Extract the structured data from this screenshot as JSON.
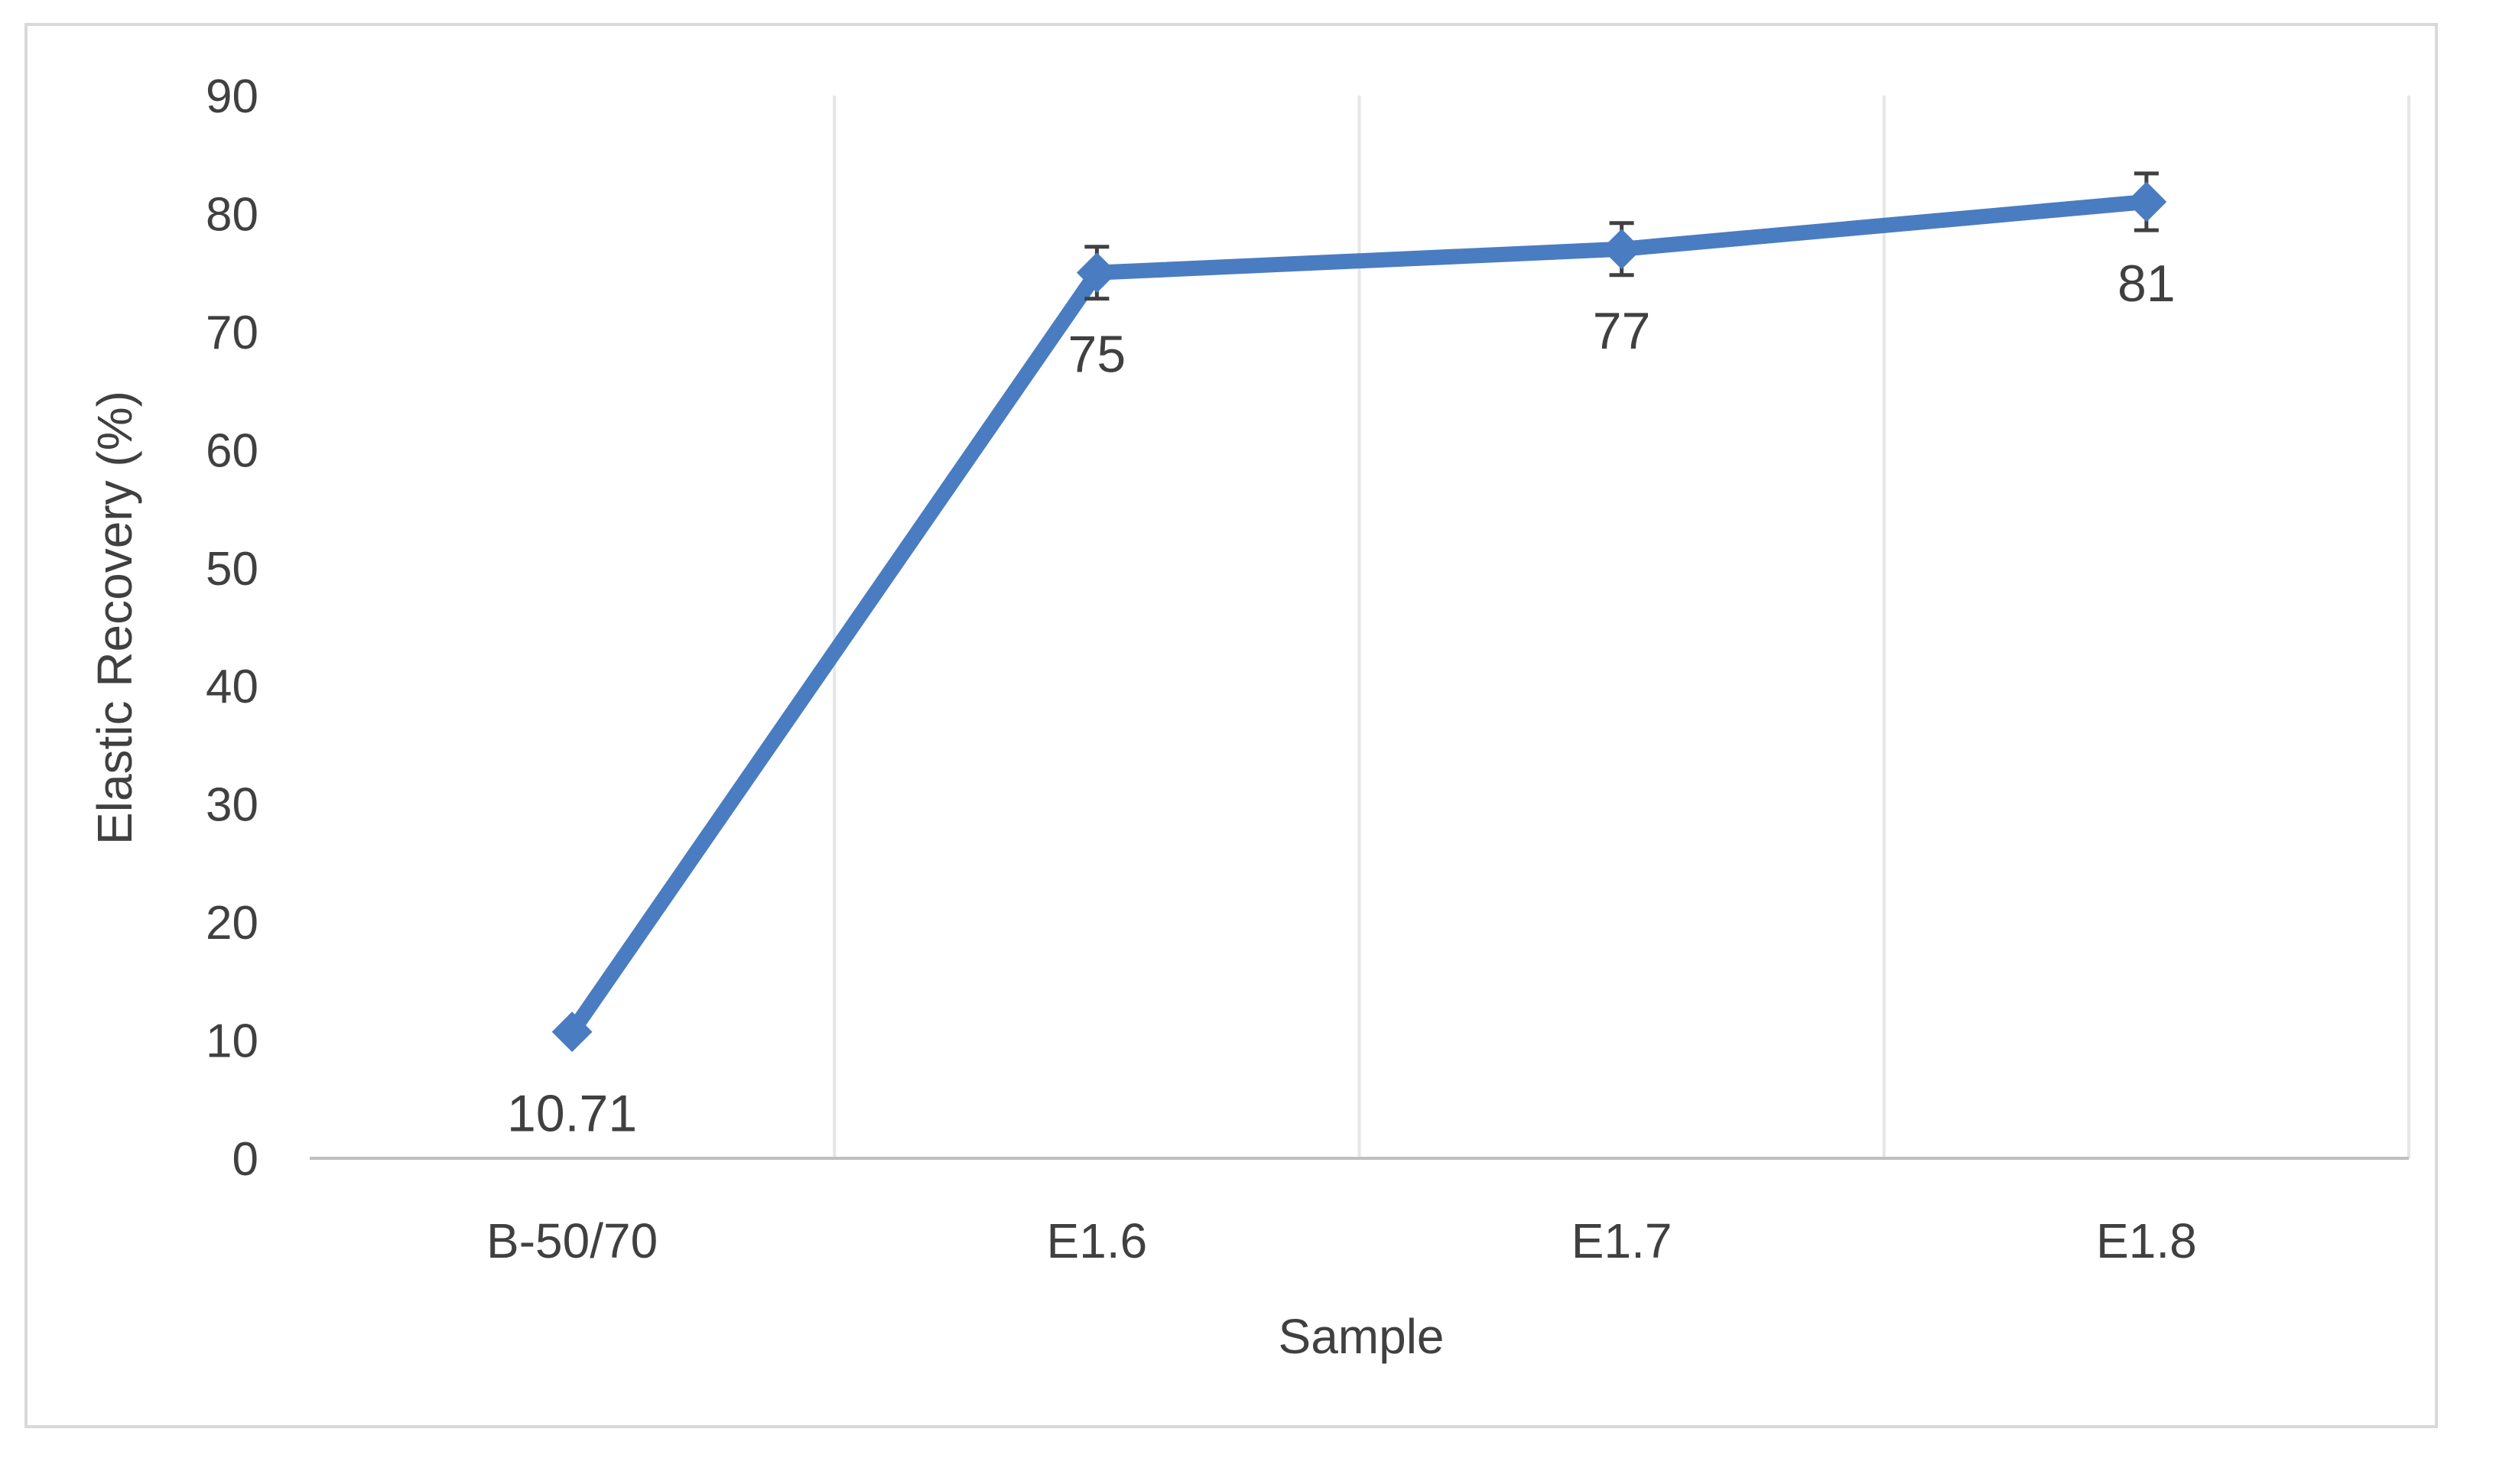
{
  "chart_data": {
    "type": "line",
    "categories": [
      "B-50/70",
      "E1.6",
      "E1.7",
      "E1.8"
    ],
    "series": [
      {
        "values": [
          10.71,
          75,
          77,
          81
        ],
        "data_labels": [
          "10.71",
          "75",
          "77",
          "81"
        ],
        "error": [
          0,
          2.2,
          2.2,
          2.4
        ],
        "color": "#4a7cc1",
        "marker": "diamond"
      }
    ],
    "xlabel": "Sample",
    "ylabel": "Elastic Recovery (%)",
    "ylim": [
      0,
      90
    ],
    "yticks": [
      0,
      10,
      20,
      30,
      40,
      50,
      60,
      70,
      80,
      90
    ],
    "grid": "vertical",
    "legend": "none",
    "colors": {
      "gridline": "#e6e6e6",
      "axis": "#bfbfbf",
      "text": "#404040",
      "errorbar": "#404040"
    }
  }
}
